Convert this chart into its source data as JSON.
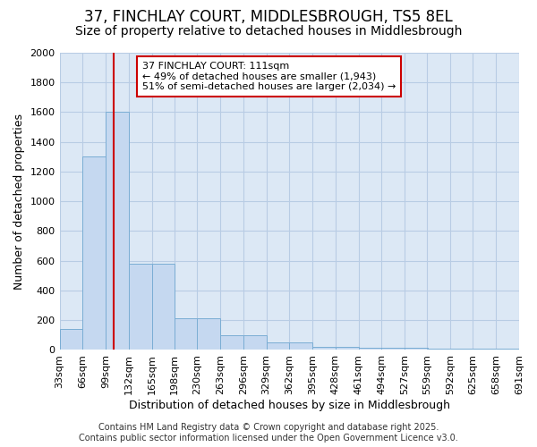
{
  "title_line1": "37, FINCHLAY COURT, MIDDLESBROUGH, TS5 8EL",
  "title_line2": "Size of property relative to detached houses in Middlesbrough",
  "xlabel": "Distribution of detached houses by size in Middlesbrough",
  "ylabel": "Number of detached properties",
  "bar_color": "#c5d8f0",
  "bar_edge_color": "#7aadd4",
  "grid_color": "#b8cce4",
  "axes_bg_color": "#dce8f5",
  "fig_bg_color": "#ffffff",
  "bins": [
    33,
    66,
    99,
    132,
    165,
    198,
    230,
    263,
    296,
    329,
    362,
    395,
    428,
    461,
    494,
    527,
    559,
    592,
    625,
    658,
    691
  ],
  "bin_labels": [
    "33sqm",
    "66sqm",
    "99sqm",
    "132sqm",
    "165sqm",
    "198sqm",
    "230sqm",
    "263sqm",
    "296sqm",
    "329sqm",
    "362sqm",
    "395sqm",
    "428sqm",
    "461sqm",
    "494sqm",
    "527sqm",
    "559sqm",
    "592sqm",
    "625sqm",
    "658sqm",
    "691sqm"
  ],
  "values": [
    140,
    1300,
    1600,
    580,
    580,
    215,
    215,
    100,
    100,
    50,
    50,
    20,
    20,
    12,
    12,
    12,
    8,
    8,
    8,
    8
  ],
  "ylim": [
    0,
    2000
  ],
  "yticks": [
    0,
    200,
    400,
    600,
    800,
    1000,
    1200,
    1400,
    1600,
    1800,
    2000
  ],
  "property_sqm": 111,
  "red_line_color": "#cc0000",
  "annotation_line1": "37 FINCHLAY COURT: 111sqm",
  "annotation_line2": "← 49% of detached houses are smaller (1,943)",
  "annotation_line3": "51% of semi-detached houses are larger (2,034) →",
  "annotation_box_color": "#ffffff",
  "annotation_box_edge": "#cc0000",
  "footer_line1": "Contains HM Land Registry data © Crown copyright and database right 2025.",
  "footer_line2": "Contains public sector information licensed under the Open Government Licence v3.0.",
  "title_fontsize": 12,
  "subtitle_fontsize": 10,
  "axis_label_fontsize": 9,
  "tick_fontsize": 8,
  "annotation_fontsize": 8,
  "footer_fontsize": 7
}
